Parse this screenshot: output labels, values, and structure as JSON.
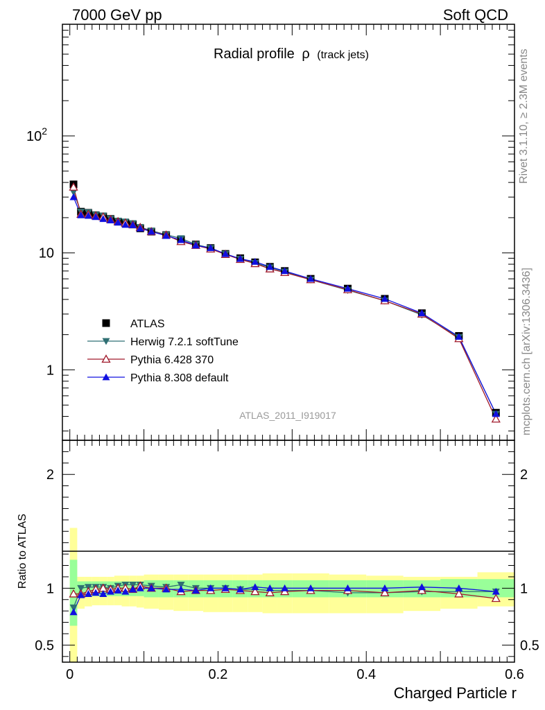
{
  "header": {
    "left": "7000 GeV pp",
    "right": "Soft QCD"
  },
  "side_labels": {
    "top": "Rivet 3.1.10, ≥ 2.3M events",
    "bottom": "mcplots.cern.ch [arXiv:1306.3436]"
  },
  "colors": {
    "atlas": "#000000",
    "herwig": "#2f6f73",
    "pythia6": "#a0192b",
    "pythia8": "#1010e0",
    "band_inner": "#99ff99",
    "band_outer": "#ffff99",
    "watermark": "#999999"
  },
  "chart_data": [
    {
      "panel": "main",
      "type": "line",
      "title": "Radial profile",
      "title_symbol": "ρ",
      "title_suffix": "(track jets)",
      "yscale": "log",
      "xlim": [
        -0.01,
        0.6
      ],
      "ylim": [
        0.25,
        900
      ],
      "ytick_labels": [
        {
          "value": 1,
          "label": "1"
        },
        {
          "value": 10,
          "label": "10"
        },
        {
          "value": 100,
          "label": "10",
          "sup": "2"
        }
      ],
      "watermark": "ATLAS_2011_I919017",
      "legend_position": "lower-left",
      "x": [
        0.005,
        0.015,
        0.025,
        0.035,
        0.045,
        0.055,
        0.065,
        0.075,
        0.085,
        0.095,
        0.11,
        0.13,
        0.15,
        0.17,
        0.19,
        0.21,
        0.23,
        0.25,
        0.27,
        0.29,
        0.325,
        0.375,
        0.425,
        0.475,
        0.525,
        0.575
      ],
      "series": [
        {
          "name": "ATLAS",
          "marker": "square",
          "values": [
            38.5,
            22.5,
            22.0,
            21.0,
            20.5,
            19.5,
            18.5,
            18.0,
            17.5,
            16.2,
            15.2,
            14.2,
            13.0,
            11.8,
            11.0,
            9.8,
            9.0,
            8.3,
            7.6,
            7.0,
            6.0,
            4.95,
            4.05,
            3.05,
            1.95,
            0.43
          ]
        },
        {
          "name": "Herwig 7.2.1 softTune",
          "marker": "triangle-down",
          "values": [
            33.0,
            22.5,
            22.2,
            21.2,
            20.8,
            19.6,
            18.8,
            18.5,
            17.9,
            16.6,
            15.5,
            14.3,
            13.3,
            11.8,
            11.0,
            9.8,
            8.9,
            8.2,
            7.5,
            6.9,
            5.9,
            4.8,
            3.9,
            2.95,
            1.9,
            0.42
          ]
        },
        {
          "name": "Pythia 6.428 370",
          "marker": "triangle-up-open",
          "values": [
            36.5,
            21.4,
            21.3,
            20.7,
            20.3,
            19.3,
            18.5,
            18.0,
            17.4,
            16.5,
            15.2,
            14.2,
            12.5,
            11.6,
            10.8,
            9.7,
            8.8,
            8.1,
            7.3,
            6.8,
            5.9,
            4.85,
            3.9,
            3.0,
            1.85,
            0.38
          ]
        },
        {
          "name": "Pythia 8.308 default",
          "marker": "triangle-up",
          "values": [
            30.0,
            21.0,
            20.8,
            20.3,
            19.5,
            19.0,
            18.2,
            17.4,
            17.3,
            16.2,
            15.2,
            14.0,
            12.9,
            11.6,
            11.0,
            9.8,
            8.9,
            8.4,
            7.6,
            7.0,
            6.0,
            4.95,
            4.05,
            3.05,
            1.92,
            0.42
          ]
        }
      ]
    },
    {
      "panel": "ratio",
      "type": "line",
      "ylabel": "Ratio to ATLAS",
      "xlabel": "Charged Particle r",
      "xlim": [
        -0.01,
        0.6
      ],
      "ylim": [
        0.35,
        2.3
      ],
      "ytick_labels": [
        {
          "value": 0.5,
          "label": "0.5"
        },
        {
          "value": 1,
          "label": "1"
        },
        {
          "value": 2,
          "label": "2"
        }
      ],
      "xtick_labels": [
        {
          "value": 0,
          "label": "0"
        },
        {
          "value": 0.2,
          "label": "0.2"
        },
        {
          "value": 0.4,
          "label": "0.4"
        },
        {
          "value": 0.6,
          "label": "0.6"
        }
      ],
      "bands": {
        "x_edges": [
          0.0,
          0.01,
          0.02,
          0.03,
          0.04,
          0.05,
          0.06,
          0.07,
          0.08,
          0.09,
          0.1,
          0.12,
          0.14,
          0.16,
          0.18,
          0.2,
          0.22,
          0.24,
          0.26,
          0.28,
          0.3,
          0.35,
          0.4,
          0.45,
          0.5,
          0.55,
          0.6
        ],
        "inner_low": [
          0.67,
          0.93,
          0.93,
          0.93,
          0.93,
          0.93,
          0.93,
          0.93,
          0.93,
          0.93,
          0.92,
          0.92,
          0.92,
          0.92,
          0.92,
          0.92,
          0.92,
          0.92,
          0.92,
          0.92,
          0.92,
          0.92,
          0.92,
          0.92,
          0.92,
          0.92
        ],
        "inner_high": [
          1.25,
          1.06,
          1.06,
          1.06,
          1.06,
          1.06,
          1.06,
          1.06,
          1.06,
          1.06,
          1.07,
          1.07,
          1.07,
          1.07,
          1.07,
          1.07,
          1.07,
          1.07,
          1.07,
          1.07,
          1.07,
          1.07,
          1.07,
          1.07,
          1.08,
          1.08
        ],
        "outer_low": [
          0.35,
          0.82,
          0.84,
          0.85,
          0.85,
          0.85,
          0.85,
          0.84,
          0.84,
          0.83,
          0.82,
          0.81,
          0.8,
          0.8,
          0.79,
          0.79,
          0.79,
          0.79,
          0.78,
          0.78,
          0.78,
          0.78,
          0.78,
          0.8,
          0.82,
          0.84
        ],
        "outer_high": [
          1.53,
          1.1,
          1.1,
          1.1,
          1.1,
          1.1,
          1.11,
          1.11,
          1.11,
          1.11,
          1.12,
          1.12,
          1.12,
          1.12,
          1.12,
          1.12,
          1.12,
          1.12,
          1.13,
          1.13,
          1.13,
          1.12,
          1.11,
          1.1,
          1.1,
          1.14
        ]
      },
      "series": [
        {
          "name": "Herwig 7.2.1 softTune",
          "values": [
            0.83,
            1.0,
            1.01,
            1.01,
            1.01,
            1.0,
            1.02,
            1.03,
            1.03,
            1.03,
            1.02,
            1.01,
            1.03,
            1.0,
            1.0,
            1.0,
            0.99,
            0.99,
            0.98,
            0.98,
            0.98,
            0.96,
            0.96,
            0.97,
            0.97,
            0.97
          ]
        },
        {
          "name": "Pythia 6.428 370",
          "values": [
            0.95,
            0.95,
            0.97,
            0.99,
            1.0,
            0.99,
            1.0,
            1.0,
            0.99,
            1.02,
            1.0,
            1.0,
            0.97,
            0.98,
            0.98,
            0.99,
            0.98,
            0.97,
            0.96,
            0.97,
            0.98,
            0.98,
            0.96,
            0.98,
            0.95,
            0.91
          ]
        },
        {
          "name": "Pythia 8.308 default",
          "values": [
            0.79,
            0.94,
            0.95,
            0.96,
            0.95,
            0.97,
            0.98,
            0.97,
            0.99,
            1.0,
            1.0,
            0.99,
            0.99,
            0.98,
            1.0,
            1.0,
            0.99,
            1.01,
            1.0,
            1.0,
            1.0,
            1.0,
            1.0,
            1.01,
            1.0,
            0.97
          ]
        }
      ]
    }
  ]
}
